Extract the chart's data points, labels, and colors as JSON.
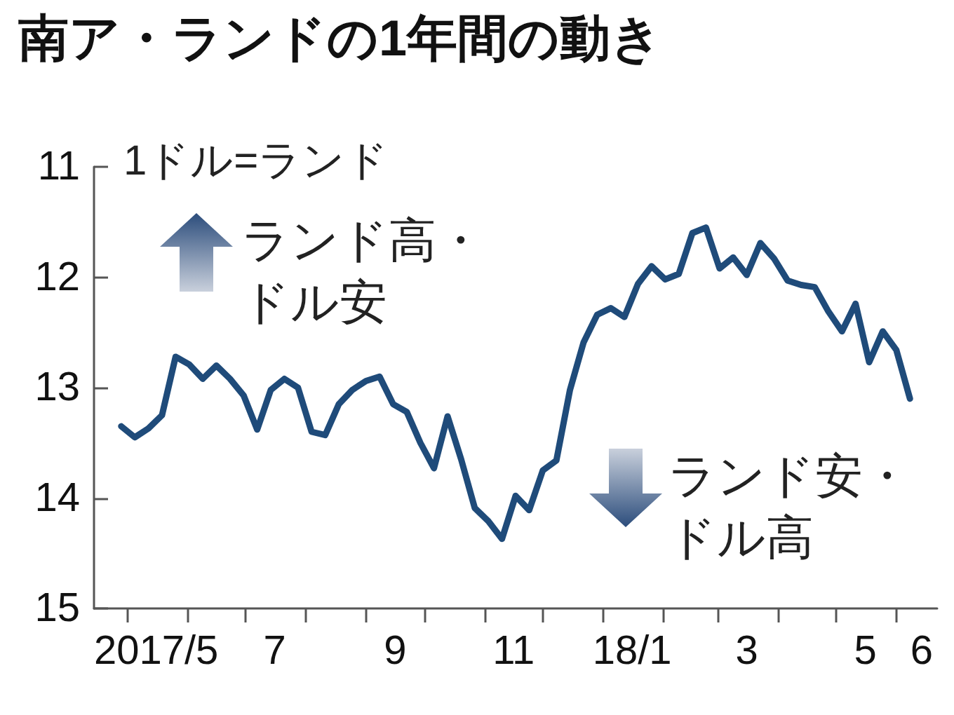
{
  "chart_data": {
    "type": "line",
    "title": "南ア・ランドの1年間の動き",
    "ylabel": "1ドル=ランド",
    "annotations": [
      "ランド高・ドル安",
      "ランド安・ドル高"
    ],
    "x": [
      "2017-04-28",
      "2017-05-05",
      "2017-05-12",
      "2017-05-19",
      "2017-05-26",
      "2017-06-02",
      "2017-06-09",
      "2017-06-16",
      "2017-06-23",
      "2017-06-30",
      "2017-07-07",
      "2017-07-14",
      "2017-07-21",
      "2017-07-28",
      "2017-08-04",
      "2017-08-11",
      "2017-08-18",
      "2017-08-25",
      "2017-09-01",
      "2017-09-08",
      "2017-09-15",
      "2017-09-22",
      "2017-09-29",
      "2017-10-06",
      "2017-10-13",
      "2017-10-20",
      "2017-10-27",
      "2017-11-03",
      "2017-11-10",
      "2017-11-17",
      "2017-11-24",
      "2017-12-01",
      "2017-12-08",
      "2017-12-15",
      "2017-12-22",
      "2017-12-29",
      "2018-01-05",
      "2018-01-12",
      "2018-01-19",
      "2018-01-26",
      "2018-02-02",
      "2018-02-09",
      "2018-02-16",
      "2018-02-23",
      "2018-03-02",
      "2018-03-09",
      "2018-03-16",
      "2018-03-23",
      "2018-03-30",
      "2018-04-06",
      "2018-04-13",
      "2018-04-20",
      "2018-04-27",
      "2018-05-04",
      "2018-05-11",
      "2018-05-18",
      "2018-05-25",
      "2018-06-01",
      "2018-06-08"
    ],
    "series": [
      {
        "color": "#1f4b7a",
        "values": [
          13.35,
          13.45,
          13.37,
          13.25,
          12.72,
          12.79,
          12.92,
          12.8,
          12.92,
          13.07,
          13.38,
          13.02,
          12.92,
          13.0,
          13.4,
          13.43,
          13.15,
          13.02,
          12.94,
          12.9,
          13.15,
          13.22,
          13.5,
          13.73,
          13.26,
          13.65,
          14.09,
          14.21,
          14.37,
          13.98,
          14.11,
          13.75,
          13.66,
          13.02,
          12.59,
          12.34,
          12.28,
          12.36,
          12.06,
          11.9,
          12.02,
          11.97,
          11.6,
          11.55,
          11.92,
          11.82,
          11.98,
          11.69,
          11.83,
          12.03,
          12.07,
          12.09,
          12.31,
          12.49,
          12.24,
          12.77,
          12.49,
          12.66,
          13.1
        ]
      }
    ],
    "xlim": [
      "2017-04-14",
      "2018-06-22"
    ],
    "xticks": [
      {
        "value": "2017-05-01",
        "label": null
      },
      {
        "value": "2017-05-16",
        "label": "2017/5"
      },
      {
        "value": "2017-06-01",
        "label": null
      },
      {
        "value": "2017-07-01",
        "label": null
      },
      {
        "value": "2017-07-16",
        "label": "7"
      },
      {
        "value": "2017-08-01",
        "label": null
      },
      {
        "value": "2017-09-01",
        "label": null
      },
      {
        "value": "2017-09-16",
        "label": "9"
      },
      {
        "value": "2017-10-01",
        "label": null
      },
      {
        "value": "2017-11-01",
        "label": null
      },
      {
        "value": "2017-11-16",
        "label": "11"
      },
      {
        "value": "2017-12-01",
        "label": null
      },
      {
        "value": "2018-01-01",
        "label": null
      },
      {
        "value": "2018-01-16",
        "label": "18/1"
      },
      {
        "value": "2018-02-01",
        "label": null
      },
      {
        "value": "2018-03-01",
        "label": null
      },
      {
        "value": "2018-03-16",
        "label": "3"
      },
      {
        "value": "2018-04-01",
        "label": null
      },
      {
        "value": "2018-05-01",
        "label": null
      },
      {
        "value": "2018-05-16",
        "label": "5"
      },
      {
        "value": "2018-06-01",
        "label": null
      },
      {
        "value": "2018-06-14",
        "label": "6"
      }
    ],
    "ylim": [
      15,
      11
    ],
    "yticks": [
      11,
      12,
      13,
      14,
      15
    ],
    "marker": "none",
    "line_style": "solid"
  }
}
